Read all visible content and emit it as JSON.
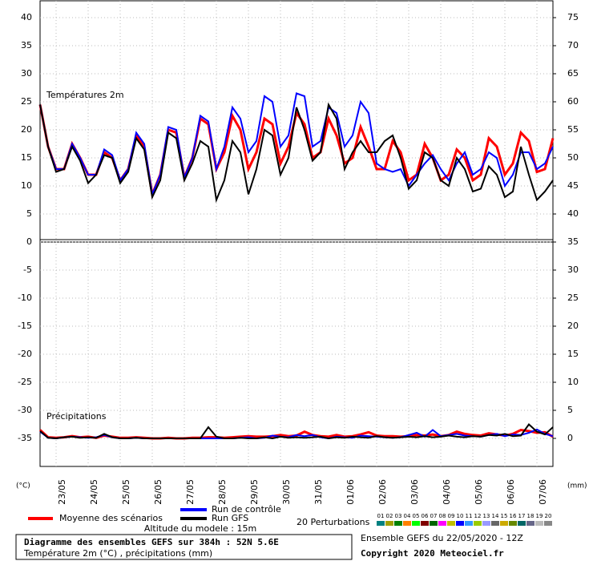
{
  "chart_data": {
    "type": "line",
    "title": "Diagramme des ensembles GEFS sur 384h : 52N 5.6E",
    "subtitle": "Température 2m (°C) , précipitations (mm)",
    "run_info": "Ensemble GEFS du 22/05/2020 - 12Z",
    "copyright": "Copyright 2020 Meteociel.fr",
    "altitude": "Altitude du modele : 15m",
    "panel_labels": [
      "Températures 2m",
      "Précipitations"
    ],
    "y_unit": "(°C)",
    "y2_unit": "(mm)",
    "perturbations_label": "20 Perturbations",
    "perturbations": [
      {
        "name": "01",
        "color": "#008080"
      },
      {
        "name": "02",
        "color": "#a0a000"
      },
      {
        "name": "03",
        "color": "#008000"
      },
      {
        "name": "04",
        "color": "#ff8000"
      },
      {
        "name": "05",
        "color": "#00ff00"
      },
      {
        "name": "06",
        "color": "#800000"
      },
      {
        "name": "07",
        "color": "#006400"
      },
      {
        "name": "08",
        "color": "#ff00ff"
      },
      {
        "name": "09",
        "color": "#c0c000"
      },
      {
        "name": "10",
        "color": "#0000ff"
      },
      {
        "name": "11",
        "color": "#3399ff"
      },
      {
        "name": "12",
        "color": "#99cc00"
      },
      {
        "name": "13",
        "color": "#9999ff"
      },
      {
        "name": "14",
        "color": "#666666"
      },
      {
        "name": "15",
        "color": "#ccaa00"
      },
      {
        "name": "16",
        "color": "#668800"
      },
      {
        "name": "17",
        "color": "#006666"
      },
      {
        "name": "18",
        "color": "#666688"
      },
      {
        "name": "19",
        "color": "#bbbbbb"
      },
      {
        "name": "20",
        "color": "#888888"
      }
    ],
    "xlim": [
      0,
      384
    ],
    "xticks": [
      {
        "value": 12,
        "label": "23/05"
      },
      {
        "value": 36,
        "label": "24/05"
      },
      {
        "value": 60,
        "label": "25/05"
      },
      {
        "value": 84,
        "label": "26/05"
      },
      {
        "value": 108,
        "label": "27/05"
      },
      {
        "value": 132,
        "label": "28/05"
      },
      {
        "value": 156,
        "label": "29/05"
      },
      {
        "value": 180,
        "label": "30/05"
      },
      {
        "value": 204,
        "label": "31/05"
      },
      {
        "value": 228,
        "label": "01/06"
      },
      {
        "value": 252,
        "label": "02/06"
      },
      {
        "value": 276,
        "label": "03/06"
      },
      {
        "value": 300,
        "label": "04/06"
      },
      {
        "value": 324,
        "label": "05/06"
      },
      {
        "value": 348,
        "label": "06/06"
      },
      {
        "value": 372,
        "label": "07/06"
      }
    ],
    "ylim": [
      -40,
      43
    ],
    "yticks": [
      40,
      35,
      30,
      25,
      20,
      15,
      10,
      5,
      0,
      -5,
      -10,
      -15,
      -20,
      -25,
      -30,
      -35
    ],
    "y2lim": [
      -5,
      78
    ],
    "y2ticks": [
      75,
      70,
      65,
      60,
      55,
      50,
      45,
      40,
      35,
      30,
      25,
      20,
      15,
      10,
      5,
      0
    ],
    "grid": true,
    "x": [
      0,
      6,
      12,
      18,
      24,
      30,
      36,
      42,
      48,
      54,
      60,
      66,
      72,
      78,
      84,
      90,
      96,
      102,
      108,
      114,
      120,
      126,
      132,
      138,
      144,
      150,
      156,
      162,
      168,
      174,
      180,
      186,
      192,
      198,
      204,
      210,
      216,
      222,
      228,
      234,
      240,
      246,
      252,
      258,
      264,
      270,
      276,
      282,
      288,
      294,
      300,
      306,
      312,
      318,
      324,
      330,
      336,
      342,
      348,
      354,
      360,
      366,
      372,
      378,
      384
    ],
    "series": [
      {
        "name": "Moyenne des scénarios",
        "color": "#ff0000",
        "width": 3,
        "axis": "y",
        "values": [
          24.5,
          17,
          13,
          13,
          17.5,
          15,
          12,
          12,
          16,
          15,
          11,
          13,
          19,
          17,
          8.5,
          12,
          20,
          19.5,
          11.5,
          15,
          22,
          21,
          13,
          16,
          22.5,
          20,
          13,
          16,
          22,
          21,
          14,
          17,
          23,
          21,
          15,
          16,
          22,
          19,
          14,
          15,
          20.5,
          17,
          13,
          13,
          18,
          16,
          11,
          12,
          17.5,
          15,
          11,
          12,
          16.5,
          15,
          11,
          12,
          18.5,
          17,
          12,
          14,
          19.5,
          18,
          12.5,
          13,
          18.5
        ]
      },
      {
        "name": "Run de contrôle",
        "color": "#0000ff",
        "width": 2,
        "axis": "y",
        "values": [
          24.5,
          17,
          13,
          13,
          17.5,
          15,
          12,
          12,
          16.5,
          15.5,
          11,
          13,
          19.5,
          17.5,
          8.5,
          12,
          20.5,
          20,
          11.5,
          15,
          22.5,
          21.5,
          13,
          17,
          24,
          22,
          16,
          18,
          26,
          25,
          17,
          19,
          26.5,
          26,
          17,
          18,
          24,
          23,
          17,
          19,
          25,
          23,
          14,
          13,
          12.5,
          13,
          10,
          12,
          14,
          15.5,
          13,
          11,
          14,
          16,
          12,
          13,
          16,
          15,
          10,
          12,
          16,
          16,
          13,
          14,
          17
        ]
      },
      {
        "name": "Run GFS",
        "color": "#000000",
        "width": 2,
        "axis": "y",
        "values": [
          24.5,
          17,
          12.5,
          13,
          17,
          14.5,
          10.5,
          12,
          15.5,
          15,
          10.5,
          12.5,
          18.5,
          16.5,
          8,
          11,
          19.5,
          18.5,
          11,
          14,
          18,
          17,
          7.5,
          11,
          18,
          16,
          8.5,
          13,
          20,
          19,
          12,
          15,
          24,
          20,
          14.5,
          16,
          24.5,
          22,
          13,
          16,
          18,
          16,
          16,
          18,
          19,
          15,
          9.5,
          11,
          16,
          15,
          11,
          10,
          15,
          13,
          9,
          9.5,
          13.5,
          12,
          8,
          9,
          17,
          12,
          7.5,
          9,
          11
        ]
      },
      {
        "name": "Moyenne des scénarios",
        "color": "#ff0000",
        "width": 3,
        "axis": "y2",
        "values": [
          1.5,
          0.2,
          0.1,
          0.2,
          0.4,
          0.2,
          0.3,
          0.1,
          0.5,
          0.3,
          0.1,
          0.1,
          0.2,
          0.1,
          0,
          0,
          0.1,
          0,
          0,
          0.1,
          0.1,
          0.2,
          0.2,
          0.1,
          0.2,
          0.3,
          0.4,
          0.3,
          0.3,
          0.4,
          0.6,
          0.4,
          0.5,
          1.2,
          0.6,
          0.4,
          0.3,
          0.6,
          0.3,
          0.4,
          0.7,
          1.1,
          0.5,
          0.4,
          0.4,
          0.3,
          0.4,
          0.6,
          0.5,
          0.7,
          0.4,
          0.6,
          1.2,
          0.8,
          0.6,
          0.5,
          0.9,
          0.7,
          0.5,
          0.8,
          1.5,
          1.3,
          1.0,
          1.1,
          0.3
        ]
      },
      {
        "name": "Run de contrôle",
        "color": "#0000ff",
        "width": 2,
        "axis": "y2",
        "values": [
          1.2,
          0.1,
          0,
          0.2,
          0.3,
          0.2,
          0.1,
          0.2,
          0.6,
          0.2,
          0,
          0,
          0.1,
          0,
          0,
          0,
          0,
          0,
          0,
          0,
          0,
          0,
          0,
          0,
          0,
          0.1,
          0.2,
          0,
          0.1,
          0.5,
          0.3,
          0.2,
          0.6,
          0.4,
          0.6,
          0.2,
          0,
          0.3,
          0.2,
          0.1,
          0.5,
          0.4,
          0.3,
          0.2,
          0.1,
          0.2,
          0.6,
          1.0,
          0.3,
          1.5,
          0.4,
          0.6,
          0.8,
          0.5,
          0.4,
          0.3,
          0.6,
          0.8,
          0.4,
          0.7,
          0.6,
          1.0,
          1.6,
          0.8,
          0.4
        ]
      },
      {
        "name": "Run GFS",
        "color": "#000000",
        "width": 2,
        "axis": "y2",
        "values": [
          1.3,
          0.1,
          0,
          0.2,
          0.3,
          0.1,
          0.2,
          0.1,
          0.8,
          0.2,
          0,
          0,
          0.1,
          0,
          0,
          0,
          0,
          0,
          0,
          0,
          0,
          2.0,
          0.3,
          0,
          0,
          0.1,
          0,
          0,
          0.2,
          0,
          0.3,
          0.1,
          0.2,
          0.1,
          0.2,
          0.3,
          0,
          0.2,
          0.1,
          0.3,
          0.2,
          0.1,
          0.4,
          0.2,
          0.1,
          0.2,
          0.3,
          0.2,
          0.4,
          0.2,
          0.3,
          0.5,
          0.3,
          0.2,
          0.4,
          0.3,
          0.6,
          0.5,
          0.8,
          0.4,
          0.5,
          2.5,
          1.2,
          0.7,
          2.0
        ]
      }
    ]
  }
}
